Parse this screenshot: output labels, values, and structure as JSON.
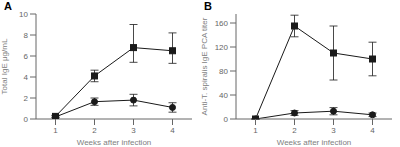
{
  "chart_data": [
    {
      "type": "line",
      "title": "A",
      "x": [
        1,
        2,
        3,
        4
      ],
      "xlabel": "Weeks after infection",
      "ylabel": "Total IgE μg/mL",
      "xlim": [
        0.5,
        4.5
      ],
      "xticks": [
        1,
        2,
        3,
        4
      ],
      "ylim": [
        0,
        10
      ],
      "yticks": [
        0,
        2,
        4,
        6,
        8,
        10
      ],
      "grid": false,
      "series": [
        {
          "color": "#1a1a1a",
          "marker": "square",
          "line_style": "solid",
          "values": [
            0.25,
            4.1,
            6.8,
            6.5
          ],
          "error_lo": [
            0.1,
            0.55,
            1.4,
            1.2
          ],
          "error_hi": [
            0.1,
            0.55,
            2.2,
            1.7
          ]
        },
        {
          "color": "#1a1a1a",
          "marker": "circle",
          "line_style": "solid",
          "values": [
            0.2,
            1.65,
            1.8,
            1.1
          ],
          "error_lo": [
            0.1,
            0.35,
            0.55,
            0.45
          ],
          "error_hi": [
            0.1,
            0.35,
            0.55,
            0.45
          ]
        }
      ]
    },
    {
      "type": "line",
      "title": "B",
      "x": [
        1,
        2,
        3,
        4
      ],
      "xlabel": "Weeks after infection",
      "ylabel": "Anti-T. spiralis IgE PCA titer",
      "xlim": [
        0.5,
        4.5
      ],
      "xticks": [
        1,
        2,
        3,
        4
      ],
      "ylim": [
        0,
        175
      ],
      "yticks": [
        0,
        40,
        80,
        120,
        160
      ],
      "grid": false,
      "series": [
        {
          "color": "#1a1a1a",
          "marker": "square",
          "line_style": "solid",
          "values": [
            0,
            155,
            110,
            100
          ],
          "error_lo": [
            0,
            18,
            45,
            28
          ],
          "error_hi": [
            0,
            18,
            45,
            28
          ]
        },
        {
          "color": "#1a1a1a",
          "marker": "circle",
          "line_style": "solid",
          "values": [
            0,
            10,
            13,
            7
          ],
          "error_lo": [
            0,
            4,
            6,
            3
          ],
          "error_hi": [
            0,
            4,
            6,
            3
          ]
        }
      ]
    }
  ]
}
